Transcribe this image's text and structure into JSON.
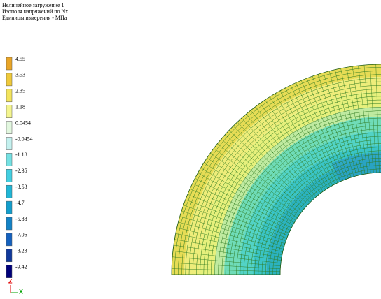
{
  "header": {
    "lines": [
      "Нелинейное загружение 1",
      "Изополя напряжений по Nx",
      "Единицы измерения - МПа"
    ]
  },
  "legend": {
    "items": [
      {
        "label": "4.55",
        "color": "#e9a526"
      },
      {
        "label": "3.53",
        "color": "#efc93a"
      },
      {
        "label": "2.35",
        "color": "#f3e45c"
      },
      {
        "label": "1.18",
        "color": "#f4f58e"
      },
      {
        "label": "0.0454",
        "color": "#e2f7df"
      },
      {
        "label": "-0.0454",
        "color": "#c4f1ef"
      },
      {
        "label": "-1.18",
        "color": "#74e1e3"
      },
      {
        "label": "-2.35",
        "color": "#41cfe1"
      },
      {
        "label": "-3.53",
        "color": "#1fb6d6"
      },
      {
        "label": "-4.7",
        "color": "#129ecd"
      },
      {
        "label": "-5.88",
        "color": "#1282c6"
      },
      {
        "label": "-7.06",
        "color": "#1461bf"
      },
      {
        "label": "-8.23",
        "color": "#10399c"
      },
      {
        "label": "-9.42",
        "color": "#00007a"
      }
    ]
  },
  "axes": {
    "z": "Z",
    "x": "X"
  }
}
